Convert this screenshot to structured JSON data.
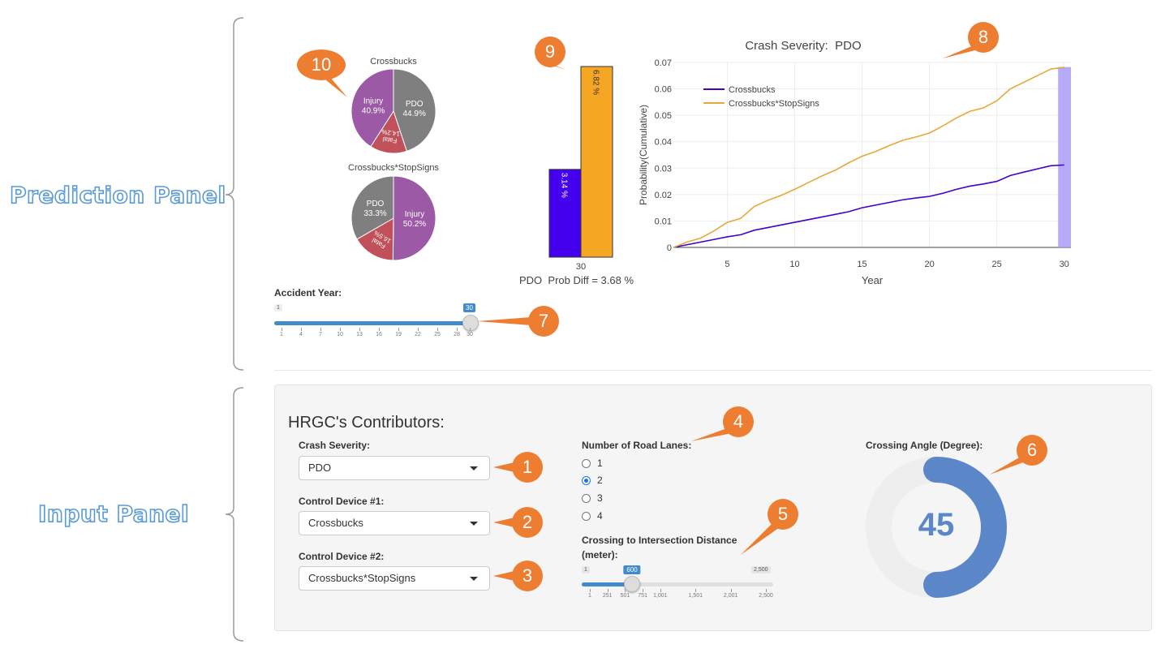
{
  "labels": {
    "prediction_panel": "Prediction Panel",
    "input_panel": "Input Panel"
  },
  "callouts": [
    "1",
    "2",
    "3",
    "4",
    "5",
    "6",
    "7",
    "8",
    "9",
    "10"
  ],
  "pies": [
    {
      "title": "Crossbucks",
      "slices": [
        {
          "name": "PDO",
          "pct": "44.9%",
          "value": 44.9,
          "color": "#7f7f7f"
        },
        {
          "name": "Fatal",
          "pct": "14.2%",
          "value": 14.2,
          "color": "#c0505a"
        },
        {
          "name": "Injury",
          "pct": "40.9%",
          "value": 40.9,
          "color": "#9b59a6"
        }
      ]
    },
    {
      "title": "Crossbucks*StopSigns",
      "slices": [
        {
          "name": "Injury",
          "pct": "50.2%",
          "value": 50.2,
          "color": "#9b59a6"
        },
        {
          "name": "Fatal",
          "pct": "16.5%",
          "value": 16.5,
          "color": "#c0505a"
        },
        {
          "name": "PDO",
          "pct": "33.3%",
          "value": 33.3,
          "color": "#7f7f7f"
        }
      ]
    }
  ],
  "bar_chart": {
    "bars": [
      {
        "label": "3.14 %",
        "value": 3.14,
        "color": "#4400ee"
      },
      {
        "label": "6.82 %",
        "value": 6.82,
        "color": "#f5a623"
      }
    ],
    "category": "30",
    "caption": "PDO  Prob Diff = 3.68 %"
  },
  "chart_data": {
    "type": "line",
    "title": "Crash Severity:  PDO",
    "xlabel": "Year",
    "ylabel": "Probability(Cumulative)",
    "xlim": [
      1,
      30.5
    ],
    "ylim": [
      0,
      0.07
    ],
    "x_ticks": [
      "5",
      "10",
      "15",
      "20",
      "25",
      "30"
    ],
    "y_ticks": [
      "0",
      "0.01",
      "0.02",
      "0.03",
      "0.04",
      "0.05",
      "0.06",
      "0.07"
    ],
    "legend_position": "top-left",
    "highlight_year": 30,
    "highlight_color": "#a99cf5",
    "x": [
      1,
      2,
      3,
      4,
      5,
      6,
      7,
      8,
      9,
      10,
      11,
      12,
      13,
      14,
      15,
      16,
      17,
      18,
      19,
      20,
      21,
      22,
      23,
      24,
      25,
      26,
      27,
      28,
      29,
      30
    ],
    "series": [
      {
        "name": "Crossbucks",
        "color": "#4400cc",
        "values": [
          0.0,
          0.001,
          0.002,
          0.003,
          0.004,
          0.0048,
          0.0065,
          0.0075,
          0.0085,
          0.0095,
          0.0105,
          0.0115,
          0.0125,
          0.0135,
          0.015,
          0.016,
          0.017,
          0.018,
          0.0187,
          0.0193,
          0.0205,
          0.022,
          0.0232,
          0.024,
          0.025,
          0.0272,
          0.0285,
          0.0297,
          0.0309,
          0.0312
        ]
      },
      {
        "name": "Crossbucks*StopSigns",
        "color": "#e8a838",
        "values": [
          0.0,
          0.002,
          0.0035,
          0.0062,
          0.0095,
          0.011,
          0.0155,
          0.0178,
          0.0197,
          0.022,
          0.0245,
          0.027,
          0.0292,
          0.032,
          0.0345,
          0.0363,
          0.0385,
          0.0405,
          0.0418,
          0.0433,
          0.046,
          0.049,
          0.0515,
          0.0528,
          0.0555,
          0.06,
          0.0625,
          0.065,
          0.0675,
          0.0682
        ]
      }
    ]
  },
  "accident_year_slider": {
    "label": "Accident Year:",
    "min": "1",
    "max": 30,
    "value": "30",
    "value_num": 30,
    "ticks": [
      "1",
      "4",
      "7",
      "10",
      "13",
      "16",
      "19",
      "22",
      "25",
      "28",
      "30"
    ]
  },
  "input_panel": {
    "title": "HRGC's Contributors:",
    "crash_severity": {
      "label": "Crash Severity:",
      "value": "PDO"
    },
    "control_device_1": {
      "label": "Control Device #1:",
      "value": "Crossbucks"
    },
    "control_device_2": {
      "label": "Control Device #2:",
      "value": "Crossbucks*StopSigns"
    },
    "road_lanes": {
      "label": "Number of Road Lanes:",
      "options": [
        "1",
        "2",
        "3",
        "4"
      ],
      "selected": "2"
    },
    "distance": {
      "label_line1": "Crossing to Intersection Distance",
      "label_line2": "(meter):",
      "min": "1",
      "max": "2,500",
      "value": "600",
      "value_num": 600,
      "max_num": 2500,
      "ticks": [
        "1",
        "251",
        "501",
        "751",
        "1,001",
        "1,501",
        "2,001",
        "2,500"
      ]
    },
    "crossing_angle": {
      "label": "Crossing Angle (Degree):",
      "value": "45",
      "value_num": 45,
      "max_num": 90,
      "color": "#5b87c9"
    }
  }
}
